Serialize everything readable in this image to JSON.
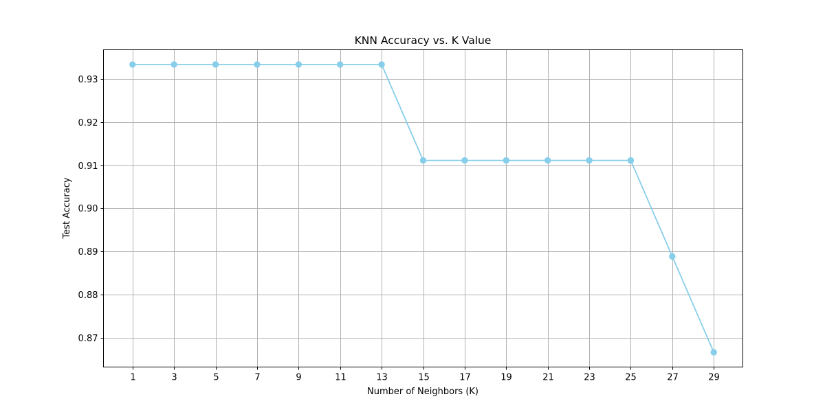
{
  "chart_data": {
    "type": "line",
    "title": "KNN Accuracy vs. K Value",
    "xlabel": "Number of Neighbors (K)",
    "ylabel": "Test Accuracy",
    "x": [
      1,
      3,
      5,
      7,
      9,
      11,
      13,
      15,
      17,
      19,
      21,
      23,
      25,
      27,
      29
    ],
    "values": [
      0.9333,
      0.9333,
      0.9333,
      0.9333,
      0.9333,
      0.9333,
      0.9333,
      0.9111,
      0.9111,
      0.9111,
      0.9111,
      0.9111,
      0.9111,
      0.8889,
      0.8667
    ],
    "xticks": [
      "1",
      "3",
      "5",
      "7",
      "9",
      "11",
      "13",
      "15",
      "17",
      "19",
      "21",
      "23",
      "25",
      "27",
      "29"
    ],
    "yticks": [
      "0.87",
      "0.88",
      "0.89",
      "0.90",
      "0.91",
      "0.92",
      "0.93"
    ],
    "xlim": [
      -0.4,
      30.4
    ],
    "ylim": [
      0.8633,
      0.9367
    ],
    "grid": true,
    "marker": "circle",
    "color": "#87ceeb"
  }
}
